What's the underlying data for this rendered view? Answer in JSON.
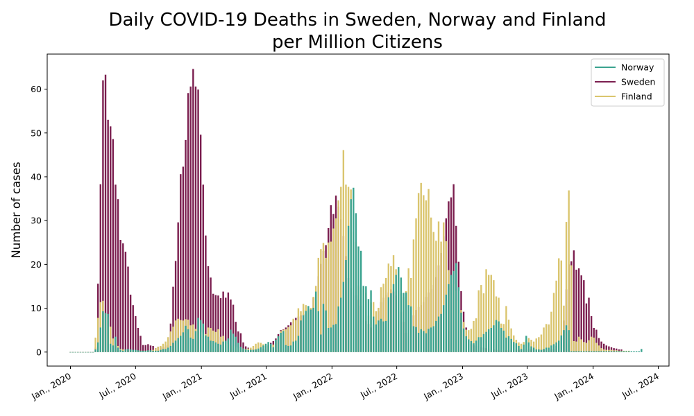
{
  "chart_data": {
    "type": "bar",
    "title": "Daily COVID-19 Deaths in Sweden, Norway and Finland",
    "subtitle": "per Million Citizens",
    "xlabel": "",
    "ylabel": "Number of cases",
    "xlim": [
      "2019-10-28",
      "2024-07-31"
    ],
    "ylim": [
      -3.2,
      68
    ],
    "yticks": [
      0,
      10,
      20,
      30,
      40,
      50,
      60
    ],
    "xticks": [
      {
        "date": "2020-01-01",
        "label": "Jan., 2020"
      },
      {
        "date": "2020-07-01",
        "label": "Jul., 2020"
      },
      {
        "date": "2021-01-01",
        "label": "Jan., 2021"
      },
      {
        "date": "2021-07-01",
        "label": "Jul., 2021"
      },
      {
        "date": "2022-01-01",
        "label": "Jan., 2022"
      },
      {
        "date": "2022-07-01",
        "label": "Jul., 2022"
      },
      {
        "date": "2023-01-01",
        "label": "Jan., 2023"
      },
      {
        "date": "2023-07-01",
        "label": "Jul., 2023"
      },
      {
        "date": "2024-01-01",
        "label": "Jan., 2024"
      },
      {
        "date": "2024-07-01",
        "label": "Jul., 2024"
      }
    ],
    "grid": false,
    "legend_position": "top-right",
    "x_start": "2020-01-01",
    "x_step": "weekly",
    "series": [
      {
        "name": "Sweden",
        "color": "#7b1e4f",
        "values": [
          0,
          0,
          0,
          0,
          0,
          0,
          0,
          0,
          0,
          0,
          1,
          15.6,
          38.3,
          62,
          63.3,
          53,
          51.5,
          48.6,
          38.2,
          34.9,
          25.6,
          24.8,
          22.9,
          19.5,
          13.1,
          10.7,
          8.2,
          5.5,
          3.7,
          1.6,
          1.6,
          1.8,
          1.5,
          1.4,
          0.9,
          1.2,
          1.1,
          1.1,
          1.5,
          1.6,
          6.5,
          14.9,
          20.8,
          29.6,
          40.6,
          42.3,
          48.4,
          59.1,
          60.6,
          64.6,
          60.6,
          59.9,
          49.6,
          38.2,
          26.6,
          19.6,
          17,
          13.3,
          13,
          12.9,
          12.3,
          13.8,
          12.4,
          13.6,
          12,
          10.8,
          6.9,
          4.7,
          4.3,
          2.2,
          1.3,
          1,
          0.8,
          0.7,
          0.6,
          0.5,
          0.8,
          0.7,
          0.5,
          1.5,
          2.1,
          2.5,
          3.1,
          4.1,
          5,
          5.2,
          5.6,
          6.1,
          6.8,
          7.3,
          7.8,
          8.1,
          8.4,
          8.6,
          9.1,
          9.3,
          9.8,
          12.4,
          13.4,
          17.3,
          20.1,
          23.1,
          24.4,
          28.3,
          33.5,
          31.5,
          35.7,
          33.2,
          30.3,
          26.5,
          21.9,
          16.9,
          14.6,
          13.7,
          12.9,
          11.9,
          10.6,
          8.4,
          7.1,
          6.4,
          5.6,
          6.3,
          8.1,
          9.3,
          11.4,
          12.4,
          13.1,
          13.6,
          14.3,
          13.8,
          12.9,
          11.1,
          9.2,
          6.9,
          4.4,
          3.7,
          5.9,
          8.4,
          9.6,
          10.3,
          10.7,
          11.4,
          12.6,
          13.6,
          14.4,
          15.3,
          17.1,
          19.8,
          22.6,
          26.4,
          30.5,
          34.4,
          35.3,
          38.3,
          28.8,
          20.6,
          13.9,
          9.2,
          5.6,
          2.6,
          1.9,
          1.6,
          1.4,
          1.3,
          1.1,
          1,
          0.9,
          0.8,
          0.7,
          0.6,
          0.5,
          0.4,
          0.4,
          0.4,
          0.4,
          0.4,
          0.5,
          0.5,
          0.5,
          0.5,
          0.5,
          0.6,
          0.6,
          0.6,
          0.6,
          0.6,
          0.6,
          0.6,
          0.6,
          0.6,
          0.6,
          0.6,
          0.6,
          0.6,
          1.4,
          2.1,
          3.2,
          7.2,
          14.3,
          20,
          20.7,
          23.2,
          18.8,
          19.1,
          17.5,
          16.4,
          11.1,
          12.4,
          8.2,
          5.5,
          5.1,
          3.2,
          2.4,
          1.9,
          1.5,
          1.3,
          1.1,
          0.9,
          0.8,
          0.6,
          0.6
        ]
      },
      {
        "name": "Finland",
        "color": "#dac56e",
        "values": [
          0,
          0,
          0,
          0,
          0,
          0,
          0,
          0,
          0,
          0,
          3.3,
          7.8,
          11.4,
          11.7,
          8.9,
          8,
          5.8,
          3.1,
          1.8,
          1.4,
          0.7,
          0.6,
          0.5,
          0.4,
          0.4,
          0.3,
          0.3,
          0.3,
          0.3,
          0.3,
          0.3,
          0.3,
          0.3,
          0.5,
          0.9,
          1.2,
          1.4,
          1.9,
          2.4,
          3.4,
          4.7,
          5.8,
          7.2,
          7.6,
          7.3,
          7.2,
          7.5,
          7.4,
          6.1,
          6.3,
          5.3,
          5.2,
          4.6,
          4.3,
          4.1,
          5.6,
          5.5,
          4.9,
          4.6,
          5.2,
          3.5,
          3.7,
          2.4,
          1.9,
          1.5,
          1.4,
          1.2,
          1,
          0.9,
          0.8,
          0.7,
          0.8,
          1,
          1.4,
          1.9,
          2.2,
          2.1,
          1.8,
          1.4,
          1.7,
          1.3,
          1.7,
          2.4,
          3.4,
          4.8,
          5.1,
          5.2,
          5.7,
          6.1,
          7.6,
          7.3,
          10,
          9.3,
          11,
          10.7,
          10.4,
          10.1,
          12.6,
          15.1,
          21.5,
          23.5,
          24.9,
          21.5,
          25,
          25.2,
          28.2,
          30.5,
          34.6,
          37.7,
          46.1,
          38.2,
          37.7,
          37.1,
          27.4,
          25.1,
          15.2,
          14.8,
          14.3,
          13.5,
          8.3,
          11.3,
          11.4,
          9.3,
          10.1,
          14.8,
          15.6,
          16.9,
          20.2,
          19.6,
          22.1,
          18.9,
          14,
          13.4,
          12.6,
          13.9,
          19.1,
          16.9,
          25.7,
          30.5,
          36.3,
          38.6,
          35.8,
          34.6,
          37.2,
          30.7,
          27.4,
          25.4,
          29.8,
          25.2,
          29.6,
          25.3,
          18.7,
          17.3,
          15.5,
          13.9,
          11.8,
          9.6,
          6.9,
          5.1,
          5,
          5.3,
          7.1,
          7.7,
          14.1,
          15.3,
          13.4,
          18.9,
          17.6,
          17.6,
          16.4,
          12.7,
          12.4,
          6.5,
          6.4,
          10.5,
          7.4,
          5.4,
          3.8,
          2.8,
          2.2,
          1.9,
          2.3,
          2.6,
          3.2,
          2.8,
          2.4,
          3.1,
          3.4,
          4,
          5.6,
          6.4,
          6.3,
          9.2,
          13.5,
          16.3,
          21.4,
          20.9,
          10.6,
          29.7,
          36.9,
          19.8,
          2.5,
          2.4,
          3.5,
          2.9,
          2.3,
          2.1,
          2.7,
          3.5,
          3.3,
          2.1,
          1.5,
          0.9,
          0.6,
          0.5,
          0.5,
          0.5,
          0.4,
          0.4,
          0.3,
          0.3,
          0.3,
          0.3,
          0.3
        ]
      },
      {
        "name": "Norway",
        "color": "#3aa38f",
        "values": [
          0,
          0,
          0,
          0,
          0,
          0,
          0,
          0,
          0,
          0,
          0.6,
          2.2,
          5.6,
          9.3,
          8.9,
          8.7,
          1.9,
          1.5,
          3.5,
          1,
          0.5,
          0.3,
          0.6,
          0.7,
          0.6,
          0.5,
          0.5,
          0.4,
          0.3,
          0.3,
          0.3,
          0.4,
          0.4,
          0.3,
          0.3,
          0.3,
          0.5,
          0.7,
          0.7,
          1,
          1.4,
          2.1,
          2.6,
          3.2,
          3.7,
          4.5,
          6,
          5.2,
          3.3,
          3,
          4.8,
          7.8,
          7.3,
          6.5,
          3.8,
          3.5,
          2.6,
          2.5,
          2.2,
          1.9,
          1.7,
          2.4,
          2.6,
          3.1,
          5.1,
          4.2,
          3.5,
          2.1,
          1.2,
          0.8,
          0.6,
          0.5,
          0.5,
          0.5,
          0.6,
          0.8,
          1.1,
          1.5,
          1.9,
          2.3,
          1.9,
          1.1,
          2.8,
          3.6,
          4.4,
          4.8,
          1.6,
          1.4,
          1.5,
          2.4,
          2.6,
          3.7,
          7.2,
          8.4,
          9.4,
          10.5,
          9.7,
          10.1,
          13.8,
          9.3,
          4,
          11,
          9.5,
          5.5,
          5.6,
          6.2,
          6.4,
          10.4,
          12.4,
          16,
          21,
          28.8,
          34.9,
          37.5,
          31.7,
          24.1,
          23.1,
          15.1,
          15,
          12.1,
          14.1,
          8.1,
          6.3,
          7.2,
          7.6,
          7,
          7.1,
          12.5,
          13.4,
          15.5,
          17.6,
          19.4,
          17,
          13.5,
          13.6,
          10.7,
          10.4,
          5.9,
          5.7,
          4.4,
          5.2,
          4.8,
          4.3,
          5.3,
          5.6,
          5.9,
          7.1,
          8.1,
          8.7,
          10.7,
          13.1,
          15.5,
          17.6,
          18.5,
          20.3,
          14.8,
          9,
          5.4,
          3.6,
          2.9,
          2.5,
          2,
          2.6,
          3.4,
          3.4,
          4.1,
          4.6,
          5.2,
          5.5,
          6.1,
          7.3,
          7,
          5.5,
          4.9,
          3.3,
          3.6,
          3,
          2.3,
          2,
          1.4,
          0.7,
          1.7,
          3.7,
          2.2,
          1.3,
          1,
          0.6,
          0.6,
          0.5,
          0.7,
          1,
          1,
          1.5,
          1.8,
          2.2,
          2.6,
          3.8,
          5,
          6.1,
          5,
          0.2,
          0.2,
          0.2,
          0.2,
          0.2,
          0.2,
          0.2,
          0.2,
          0.2,
          0.2,
          0.2,
          0.2,
          0.2,
          0.2,
          0.2,
          0.2,
          0.2,
          0.2,
          0.2,
          0.2,
          0.2,
          0.2,
          0.2,
          0.2,
          0.2,
          0.2,
          0.2,
          0.2,
          0.7
        ]
      }
    ]
  }
}
